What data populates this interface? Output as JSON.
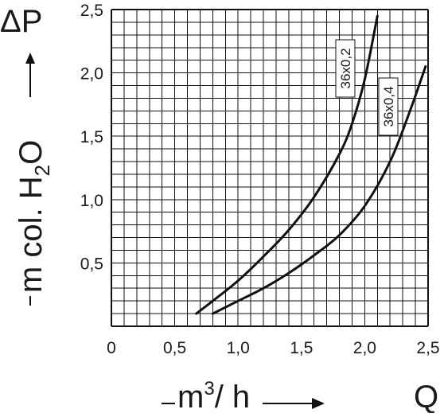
{
  "chart_data": {
    "type": "line",
    "y_symbol": "ΔP",
    "y_unit_label": "m col. H",
    "y_unit_subscript": "2",
    "y_unit_tail": "O",
    "x_symbol": "Q",
    "x_unit_label": "m",
    "x_unit_superscript": "3",
    "x_unit_tail": "/ h",
    "xlim": [
      0,
      2.5
    ],
    "ylim": [
      0,
      2.5
    ],
    "x_ticks": [
      {
        "value": 0,
        "label": "0"
      },
      {
        "value": 0.5,
        "label": "0,5"
      },
      {
        "value": 1.0,
        "label": "1,0"
      },
      {
        "value": 1.5,
        "label": "1,5"
      },
      {
        "value": 2.0,
        "label": "2,0"
      },
      {
        "value": 2.5,
        "label": "2,5"
      }
    ],
    "y_ticks": [
      {
        "value": 0.5,
        "label": "0,5"
      },
      {
        "value": 1.0,
        "label": "1,0"
      },
      {
        "value": 1.5,
        "label": "1,5"
      },
      {
        "value": 2.0,
        "label": "2,0"
      },
      {
        "value": 2.5,
        "label": "2,5"
      }
    ],
    "grid": true,
    "grid_step": 0.1,
    "series": [
      {
        "name": "36x0,2",
        "x": [
          0.67,
          0.8,
          1.0,
          1.2,
          1.4,
          1.6,
          1.8,
          1.9,
          2.0,
          2.1
        ],
        "y": [
          0.1,
          0.2,
          0.36,
          0.55,
          0.76,
          1.02,
          1.36,
          1.6,
          1.95,
          2.45
        ]
      },
      {
        "name": "36x0,4",
        "x": [
          0.8,
          1.0,
          1.2,
          1.4,
          1.6,
          1.8,
          2.0,
          2.2,
          2.35,
          2.48
        ],
        "y": [
          0.1,
          0.2,
          0.3,
          0.42,
          0.56,
          0.72,
          0.95,
          1.3,
          1.68,
          2.05
        ]
      }
    ]
  }
}
